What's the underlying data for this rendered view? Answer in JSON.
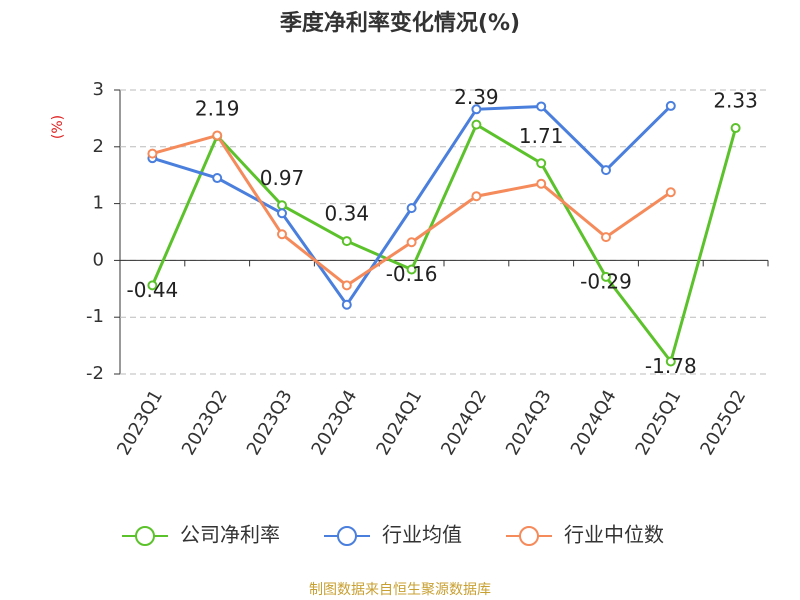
{
  "chart_data": {
    "type": "line",
    "title": "季度净利率变化情况(%)",
    "y_label": "(%)",
    "categories": [
      "2023Q1",
      "2023Q2",
      "2023Q3",
      "2023Q4",
      "2024Q1",
      "2024Q2",
      "2024Q3",
      "2024Q4",
      "2025Q1",
      "2025Q2"
    ],
    "series": [
      {
        "name": "公司净利率",
        "color": "#5cc22b",
        "values": [
          -0.44,
          2.19,
          0.97,
          0.34,
          -0.16,
          2.39,
          1.71,
          -0.29,
          -1.78,
          2.33
        ],
        "show_labels": true
      },
      {
        "name": "行业均值",
        "color": "#4a7fdd",
        "values": [
          1.8,
          1.45,
          0.83,
          -0.78,
          0.92,
          2.66,
          2.71,
          1.59,
          2.72,
          null
        ]
      },
      {
        "name": "行业中位数",
        "color": "#f58a5b",
        "values": [
          1.88,
          2.2,
          0.46,
          -0.44,
          0.32,
          1.13,
          1.35,
          0.41,
          1.2,
          null
        ]
      }
    ],
    "ylim": [
      -2,
      3
    ],
    "yticks": [
      3,
      2,
      1,
      0,
      -1,
      -2
    ],
    "grid": true,
    "source": "制图数据来自恒生聚源数据库"
  }
}
